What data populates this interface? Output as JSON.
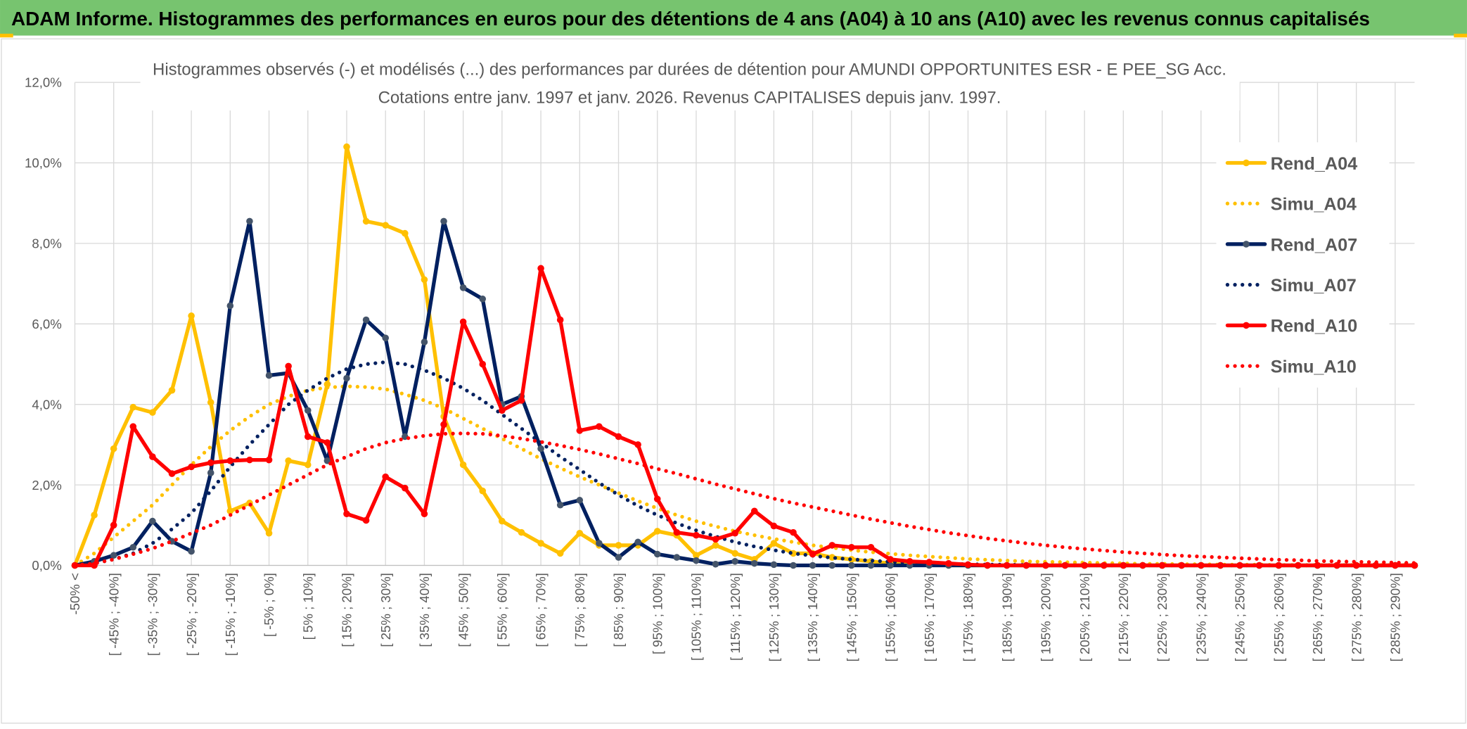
{
  "header": {
    "title": "ADAM Informe. Histogrammes des performances en euros pour des détentions de 4 ans (A04) à 10 ans (A10) avec les revenus connus capitalisés"
  },
  "chart_data": {
    "type": "line",
    "title": "Histogrammes observés (-) et modélisés (...) des performances par durées de détention pour AMUNDI OPPORTUNITES ESR - E PEE_SG Acc.",
    "subtitle": "Cotations entre janv. 1997 et janv. 2026. Revenus CAPITALISES depuis janv. 1997.",
    "categories": [
      "-50% <",
      null,
      "[ -45% ; -40%]",
      null,
      "[ -35% ; -30%]",
      null,
      "[ -25% ; -20%]",
      null,
      "[ -15% ; -10%]",
      null,
      "[ -5% ; 0%]",
      null,
      "[ 5% ; 10%]",
      null,
      "[ 15% ; 20%]",
      null,
      "[ 25% ; 30%]",
      null,
      "[ 35% ; 40%]",
      null,
      "[ 45% ; 50%]",
      null,
      "[ 55% ; 60%]",
      null,
      "[ 65% ; 70%]",
      null,
      "[ 75% ; 80%]",
      null,
      "[ 85% ; 90%]",
      null,
      "[ 95% ; 100%]",
      null,
      "[ 105% ; 110%]",
      null,
      "[ 115% ; 120%]",
      null,
      "[ 125% ; 130%]",
      null,
      "[ 135% ; 140%]",
      null,
      "[ 145% ; 150%]",
      null,
      "[ 155% ; 160%]",
      null,
      "[ 165% ; 170%]",
      null,
      "[ 175% ; 180%]",
      null,
      "[ 185% ; 190%]",
      null,
      "[ 195% ; 200%]",
      null,
      "[ 205% ; 210%]",
      null,
      "[ 215% ; 220%]",
      null,
      "[ 225% ; 230%]",
      null,
      "[ 235% ; 240%]",
      null,
      "[ 245% ; 250%]",
      null,
      "[ 255% ; 260%]",
      null,
      "[ 265% ; 270%]",
      null,
      "[ 275% ; 280%]",
      null,
      "[ 285% ; 290%]",
      null
    ],
    "ylim": [
      0,
      12
    ],
    "yticks": [
      {
        "value": 0,
        "label": "0,0%"
      },
      {
        "value": 2,
        "label": "2,0%"
      },
      {
        "value": 4,
        "label": "4,0%"
      },
      {
        "value": 6,
        "label": "6,0%"
      },
      {
        "value": 8,
        "label": "8,0%"
      },
      {
        "value": 10,
        "label": "10,0%"
      },
      {
        "value": 12,
        "label": "12,0%"
      }
    ],
    "grid": true,
    "legend": "right",
    "series": [
      {
        "name": "Rend_A04",
        "color": "#ffc000",
        "style": "solid",
        "values": [
          0,
          1.25,
          2.9,
          3.93,
          3.8,
          4.35,
          6.2,
          4.05,
          1.35,
          1.55,
          0.8,
          2.6,
          2.5,
          4.5,
          10.4,
          8.55,
          8.45,
          8.25,
          7.1,
          3.7,
          2.5,
          1.85,
          1.1,
          0.82,
          0.55,
          0.3,
          0.8,
          0.5,
          0.5,
          0.5,
          0.85,
          0.75,
          0.25,
          0.5,
          0.3,
          0.15,
          0.55,
          0.3,
          0.3,
          0.2,
          0.15,
          0.1,
          0.05,
          0.05,
          0.02,
          0,
          0,
          0,
          0,
          0,
          0,
          0,
          0,
          0,
          0,
          0,
          0,
          0,
          0,
          0,
          0,
          0,
          0,
          0,
          0,
          0,
          0,
          0,
          0,
          0
        ]
      },
      {
        "name": "Simu_A04",
        "color": "#ffc000",
        "style": "dotted",
        "values": [
          0,
          0.3,
          0.7,
          1.1,
          1.5,
          2.0,
          2.5,
          2.95,
          3.35,
          3.7,
          4.0,
          4.2,
          4.35,
          4.42,
          4.45,
          4.43,
          4.38,
          4.25,
          4.1,
          3.9,
          3.65,
          3.4,
          3.15,
          2.9,
          2.65,
          2.42,
          2.2,
          2.0,
          1.8,
          1.6,
          1.42,
          1.25,
          1.1,
          0.97,
          0.85,
          0.75,
          0.66,
          0.58,
          0.5,
          0.44,
          0.38,
          0.33,
          0.29,
          0.25,
          0.22,
          0.19,
          0.16,
          0.14,
          0.12,
          0.1,
          0.09,
          0.08,
          0.07,
          0.06,
          0.05,
          0.04,
          0.04,
          0.03,
          0.03,
          0.02,
          0.02,
          0.02,
          0.01,
          0.01,
          0.01,
          0.01,
          0.01,
          0.01,
          0.01,
          0.01
        ]
      },
      {
        "name": "Rend_A07",
        "color": "#002060",
        "marker_color": "#44546a",
        "style": "solid",
        "values": [
          0,
          0.1,
          0.25,
          0.45,
          1.1,
          0.6,
          0.35,
          2.3,
          6.45,
          8.55,
          4.72,
          4.78,
          3.85,
          2.6,
          4.65,
          6.1,
          5.65,
          3.2,
          5.55,
          8.55,
          6.9,
          6.62,
          4.0,
          4.2,
          2.9,
          1.5,
          1.62,
          0.55,
          0.2,
          0.58,
          0.28,
          0.2,
          0.12,
          0.03,
          0.1,
          0.05,
          0.02,
          0,
          0,
          0,
          0,
          0,
          0,
          0,
          0,
          0,
          0,
          0,
          0,
          0,
          0,
          0,
          0,
          0,
          0,
          0,
          0,
          0,
          0,
          0,
          0,
          0,
          0,
          0,
          0,
          0,
          0,
          0,
          0,
          0
        ]
      },
      {
        "name": "Simu_A07",
        "color": "#002060",
        "style": "dotted",
        "values": [
          0,
          0.05,
          0.15,
          0.3,
          0.55,
          0.9,
          1.3,
          1.85,
          2.45,
          3.0,
          3.5,
          4.0,
          4.35,
          4.65,
          4.88,
          5.0,
          5.05,
          5.0,
          4.85,
          4.65,
          4.4,
          4.1,
          3.75,
          3.4,
          3.05,
          2.7,
          2.38,
          2.05,
          1.75,
          1.48,
          1.25,
          1.05,
          0.87,
          0.72,
          0.58,
          0.47,
          0.38,
          0.3,
          0.24,
          0.19,
          0.15,
          0.12,
          0.09,
          0.07,
          0.05,
          0.04,
          0.03,
          0.02,
          0.02,
          0.01,
          0,
          0,
          0,
          0,
          0,
          0,
          0,
          0,
          0,
          0,
          0,
          0,
          0,
          0,
          0,
          0,
          0,
          0,
          0,
          0
        ]
      },
      {
        "name": "Rend_A10",
        "color": "#ff0000",
        "style": "solid",
        "values": [
          0,
          0,
          1.0,
          3.45,
          2.7,
          2.28,
          2.45,
          2.55,
          2.6,
          2.62,
          2.62,
          4.95,
          3.2,
          3.05,
          1.28,
          1.12,
          2.2,
          1.92,
          1.28,
          3.5,
          6.05,
          5.0,
          3.85,
          4.1,
          7.38,
          6.1,
          3.35,
          3.45,
          3.2,
          3.0,
          1.65,
          0.82,
          0.75,
          0.65,
          0.8,
          1.35,
          0.98,
          0.82,
          0.28,
          0.5,
          0.45,
          0.45,
          0.15,
          0.1,
          0.08,
          0.05,
          0.02,
          0,
          0,
          0,
          0,
          0,
          0,
          0,
          0,
          0,
          0,
          0,
          0,
          0,
          0,
          0,
          0,
          0,
          0,
          0,
          0,
          0,
          0,
          0
        ]
      },
      {
        "name": "Simu_A10",
        "color": "#ff0000",
        "style": "dotted",
        "values": [
          0,
          0.05,
          0.15,
          0.28,
          0.42,
          0.6,
          0.8,
          1.0,
          1.25,
          1.5,
          1.75,
          2.0,
          2.25,
          2.5,
          2.7,
          2.9,
          3.05,
          3.15,
          3.22,
          3.27,
          3.28,
          3.27,
          3.22,
          3.15,
          3.07,
          2.98,
          2.88,
          2.77,
          2.65,
          2.53,
          2.4,
          2.28,
          2.15,
          2.02,
          1.9,
          1.78,
          1.66,
          1.55,
          1.45,
          1.35,
          1.25,
          1.15,
          1.06,
          0.97,
          0.89,
          0.81,
          0.74,
          0.67,
          0.61,
          0.55,
          0.5,
          0.45,
          0.41,
          0.37,
          0.33,
          0.3,
          0.27,
          0.24,
          0.22,
          0.2,
          0.18,
          0.16,
          0.14,
          0.13,
          0.11,
          0.1,
          0.09,
          0.08,
          0.07,
          0.06
        ]
      }
    ]
  }
}
